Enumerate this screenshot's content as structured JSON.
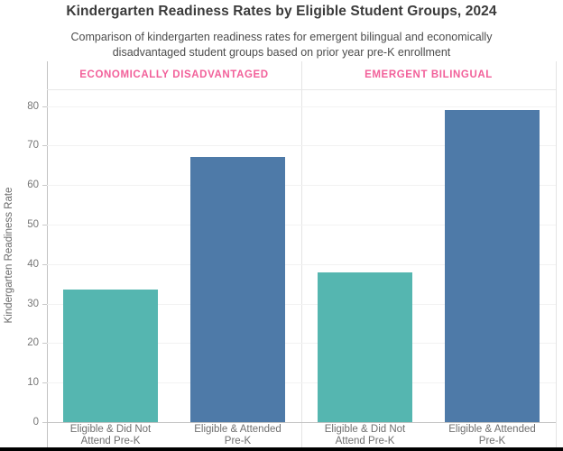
{
  "header": {
    "title": "Kindergarten Readiness Rates by Eligible Student Groups, 2024",
    "subtitle_line1": "Comparison of kindergarten readiness rates for emergent bilingual and economically",
    "subtitle_line2": "disadvantaged student groups based on prior year pre-K enrollment"
  },
  "chart_data": {
    "type": "bar",
    "title": "Kindergarten Readiness Rates by Eligible Student Groups, 2024",
    "subtitle": "Comparison of kindergarten readiness rates for emergent bilingual and economically disadvantaged student groups based on prior year pre-K enrollment",
    "ylabel": "Kindergarten Readiness Rate",
    "xlabel": "",
    "ylim": [
      0,
      84
    ],
    "yticks": [
      0,
      10,
      20,
      30,
      40,
      50,
      60,
      70,
      80
    ],
    "grid": true,
    "legend": false,
    "panels": [
      {
        "label": "ECONOMICALLY DISADVANTAGED",
        "categories": [
          "Eligible & Did Not Attend Pre-K",
          "Eligible & Attended Pre-K"
        ],
        "values": [
          33.5,
          67
        ]
      },
      {
        "label": "EMERGENT BILINGUAL",
        "categories": [
          "Eligible & Did Not Attend Pre-K",
          "Eligible & Attended Pre-K"
        ],
        "values": [
          38,
          79
        ]
      }
    ],
    "series_colors": {
      "did_not_attend": "#55b6b0",
      "attended": "#4e7aa8"
    },
    "panel_label_color": "#f2609a",
    "bottom_border_color": "#000000"
  }
}
